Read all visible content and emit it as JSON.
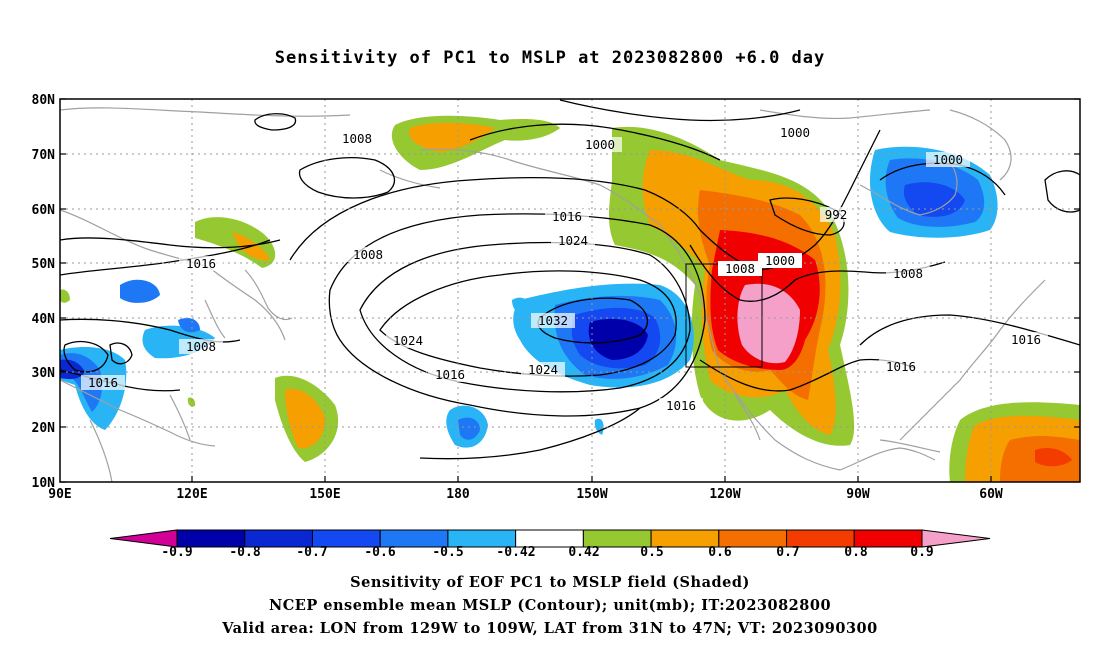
{
  "title": "Sensitivity of PC1 to MSLP at 2023082800 +6.0 day",
  "lat_labels": [
    "80N",
    "70N",
    "60N",
    "50N",
    "40N",
    "30N",
    "20N",
    "10N"
  ],
  "lon_labels": [
    "90E",
    "120E",
    "150E",
    "180",
    "150W",
    "120W",
    "90W",
    "60W"
  ],
  "colorbar": {
    "labels": [
      "-0.9",
      "-0.8",
      "-0.7",
      "-0.6",
      "-0.5",
      "-0.42",
      "0.42",
      "0.5",
      "0.6",
      "0.7",
      "0.8",
      "0.9"
    ],
    "colors": [
      "#d20096",
      "#0000aa",
      "#0a28d2",
      "#1448f0",
      "#1e78f5",
      "#28b4f5",
      "#ffffff",
      "#96c832",
      "#f5a000",
      "#f56e00",
      "#f53c00",
      "#f00000",
      "#f5a0c8"
    ]
  },
  "contour_labels": [
    "1008",
    "1000",
    "1000",
    "1000",
    "992",
    "1016",
    "1024",
    "1008",
    "1016",
    "1032",
    "1024",
    "1024",
    "1016",
    "1016",
    "1008",
    "1000",
    "1008",
    "1016",
    "1016",
    "1008",
    "1016"
  ],
  "captions": [
    "Sensitivity of EOF PC1 to MSLP field (Shaded)",
    "NCEP ensemble mean MSLP (Contour); unit(mb); IT:2023082800",
    "Valid area: LON from 129W to 109W, LAT from 31N to 47N; VT: 2023090300"
  ]
}
